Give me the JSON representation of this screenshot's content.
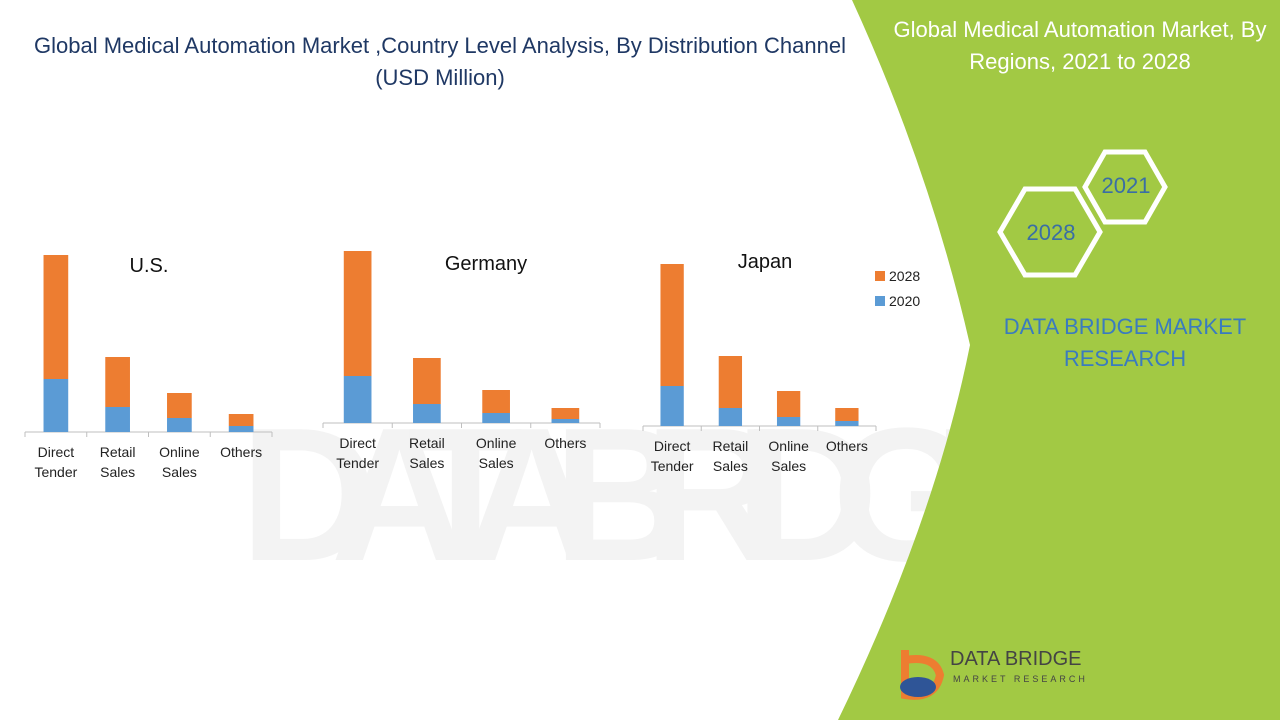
{
  "header": {
    "title": "Global Medical Automation Market ,Country Level Analysis, By Distribution Channel  (USD Million)"
  },
  "side_panel": {
    "title": "Global  Medical Automation Market, By Regions, 2021 to 2028",
    "hex_labels": [
      "2021",
      "2028"
    ],
    "brand": "DATA BRIDGE MARKET RESEARCH"
  },
  "logo": {
    "name": "DATA BRIDGE",
    "tagline": "MARKET RESEARCH"
  },
  "chart_data": [
    {
      "type": "bar",
      "stacked": true,
      "title": "U.S.",
      "categories": [
        "Direct Tender",
        "Retail Sales",
        "Online Sales",
        "Others"
      ],
      "series": [
        {
          "color": "#5b9bd5",
          "values": [
            53,
            25,
            14,
            6
          ]
        },
        {
          "color": "#ed7d31",
          "values": [
            124,
            50,
            25,
            12
          ]
        }
      ]
    },
    {
      "type": "bar",
      "stacked": true,
      "title": "Germany",
      "categories": [
        "Direct Tender",
        "Retail Sales",
        "Online Sales",
        "Others"
      ],
      "series": [
        {
          "color": "#5b9bd5",
          "values": [
            47,
            19,
            10,
            4
          ]
        },
        {
          "color": "#ed7d31",
          "values": [
            125,
            46,
            23,
            11
          ]
        }
      ]
    },
    {
      "type": "bar",
      "stacked": true,
      "title": "Japan",
      "categories": [
        "Direct Tender",
        "Retail Sales",
        "Online Sales",
        "Others"
      ],
      "series": [
        {
          "name": "2020",
          "color": "#5b9bd5",
          "values": [
            40,
            18,
            9,
            5
          ]
        },
        {
          "name": "2028",
          "color": "#ed7d31",
          "values": [
            122,
            52,
            26,
            13
          ]
        }
      ]
    }
  ]
}
